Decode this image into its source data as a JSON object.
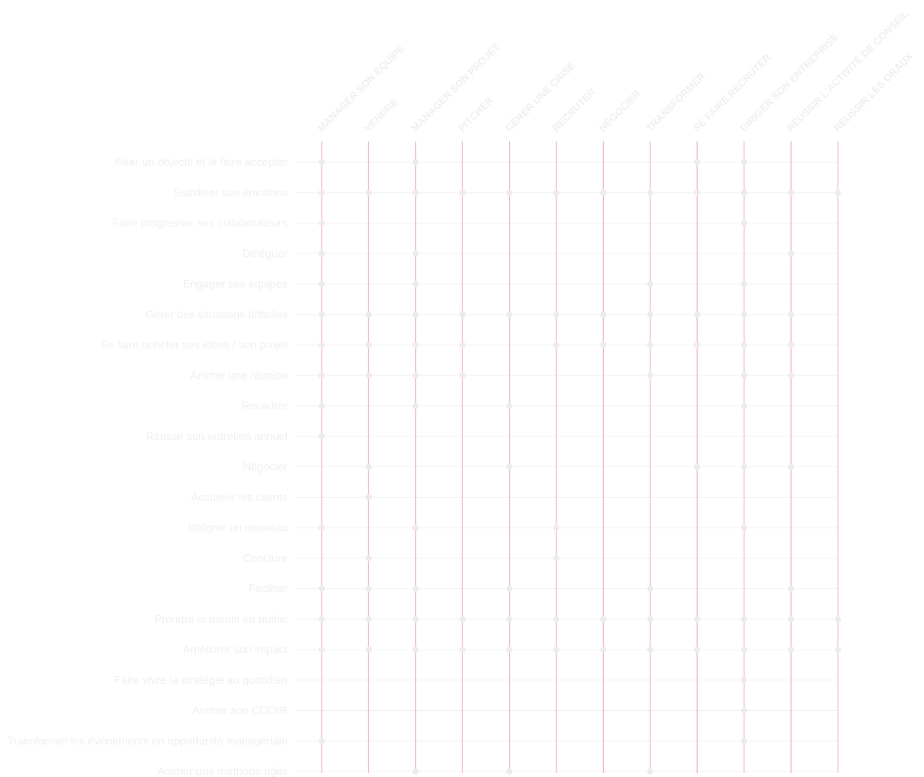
{
  "matrix": {
    "columns": [
      "MANAGER SON ÉQUIPE",
      "VENDRE",
      "MANAGER SON PROJET",
      "PITCHER",
      "GÉRER UNE CRISE",
      "RECRUTER",
      "NÉGOCIER",
      "TRANSFORMER",
      "SE FAIRE RECRUTER",
      "DIRIGER SON ENTREPRISE",
      "RÉUSSIR L'ACTIVITÉ DE CONSEIL",
      "RÉUSSIR LES ORAUX"
    ],
    "rows": [
      {
        "label": "Fixer un objectif et le faire accepter",
        "marks": [
          0,
          2,
          8,
          9
        ]
      },
      {
        "label": "Stabiliser ses émotions",
        "marks": [
          0,
          1,
          2,
          3,
          4,
          5,
          6,
          7,
          8,
          9,
          10,
          11
        ]
      },
      {
        "label": "Faire progresser ses collaborateurs",
        "marks": [
          0,
          9
        ]
      },
      {
        "label": "Déléguer",
        "marks": [
          0,
          2,
          10
        ]
      },
      {
        "label": "Engager ses équipes",
        "marks": [
          0,
          2,
          7,
          9
        ]
      },
      {
        "label": "Gérer des situations difficiles",
        "marks": [
          0,
          1,
          2,
          3,
          4,
          5,
          6,
          7,
          8,
          9,
          10
        ]
      },
      {
        "label": "Se faire acheter ses idées / son projet",
        "marks": [
          0,
          1,
          2,
          3,
          5,
          6,
          7,
          8,
          9,
          10
        ]
      },
      {
        "label": "Animer une réunion",
        "marks": [
          0,
          1,
          2,
          3,
          7,
          9,
          10
        ]
      },
      {
        "label": "Recadrer",
        "marks": [
          0,
          2,
          4,
          9
        ]
      },
      {
        "label": "Réussir son entretien annuel",
        "marks": [
          0
        ]
      },
      {
        "label": "Négocier",
        "marks": [
          1,
          4,
          8,
          9,
          10
        ]
      },
      {
        "label": "Accueillir les clients",
        "marks": [
          1
        ]
      },
      {
        "label": "Intégrer un nouveau",
        "marks": [
          0,
          2,
          5,
          9
        ]
      },
      {
        "label": "Conclure",
        "marks": [
          1,
          5
        ]
      },
      {
        "label": "Faciliter",
        "marks": [
          0,
          1,
          2,
          4,
          7,
          10
        ]
      },
      {
        "label": "Prendre la parole en public",
        "marks": [
          0,
          1,
          2,
          3,
          4,
          5,
          6,
          7,
          8,
          9,
          10,
          11
        ]
      },
      {
        "label": "Améliorer son impact",
        "marks": [
          0,
          1,
          2,
          3,
          4,
          5,
          6,
          7,
          8,
          9,
          10,
          11
        ]
      },
      {
        "label": "Faire vivre la stratégie au quotidien",
        "marks": [
          9
        ]
      },
      {
        "label": "Animer son CODIR",
        "marks": [
          9
        ]
      },
      {
        "label": "Transformer les évènements en opportunité managériale",
        "marks": [
          0,
          9
        ]
      },
      {
        "label": "Animer une méthode agile",
        "marks": [
          2,
          4,
          7
        ]
      }
    ]
  },
  "colors": {
    "column_line": "#f2a6b6",
    "row_line": "#f0f0f0",
    "dot": "#ececec",
    "text": "#efefef"
  }
}
